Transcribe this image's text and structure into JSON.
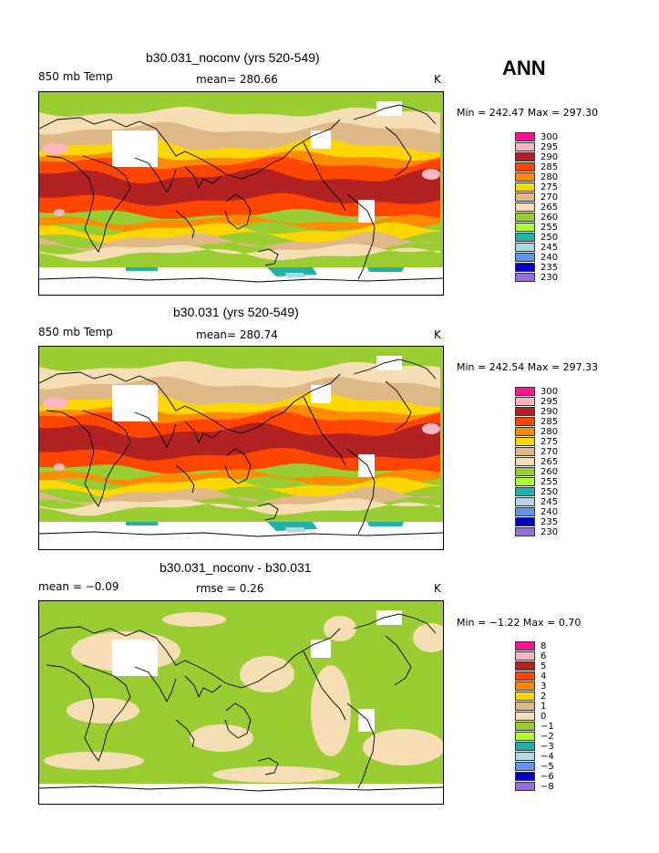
{
  "season": "ANN",
  "panels": [
    {
      "title": "b30.031_noconv (yrs 520-549)",
      "left_label": "850 mb Temp",
      "center_label": "mean= 280.66",
      "units": "K",
      "minmax": "Min = 242.47  Max = 297.30",
      "scheme": "abs"
    },
    {
      "title": "b30.031 (yrs 520-549)",
      "left_label": "850 mb Temp",
      "center_label": "mean= 280.74",
      "units": "K",
      "minmax": "Min = 242.54  Max = 297.33",
      "scheme": "abs"
    },
    {
      "title": "b30.031_noconv - b30.031",
      "left_label": "mean =   −0.09",
      "center_label": "rmse =    0.26",
      "units": "K",
      "minmax": "Min =   −1.22  Max =    0.70",
      "scheme": "diff"
    }
  ],
  "legend_abs": {
    "colors": [
      "#ff1493",
      "#ffb6c1",
      "#b22222",
      "#ff4500",
      "#ff8c00",
      "#ffd700",
      "#deb887",
      "#f5deb3",
      "#9acd32",
      "#adff2f",
      "#20b2aa",
      "#add8e6",
      "#6495ed",
      "#0000cd",
      "#9370db"
    ],
    "labels": [
      "300",
      "295",
      "290",
      "285",
      "280",
      "275",
      "270",
      "265",
      "260",
      "255",
      "250",
      "245",
      "240",
      "235",
      "230"
    ]
  },
  "legend_diff": {
    "colors": [
      "#ff1493",
      "#ffb6c1",
      "#b22222",
      "#ff4500",
      "#ff8c00",
      "#ffd700",
      "#deb887",
      "#f5deb3",
      "#9acd32",
      "#adff2f",
      "#20b2aa",
      "#add8e6",
      "#6495ed",
      "#0000cd",
      "#9370db"
    ],
    "labels": [
      "8",
      "6",
      "5",
      "4",
      "3",
      "2",
      "1",
      "0",
      "−1",
      "−2",
      "−3",
      "−4",
      "−5",
      "−6",
      "−8"
    ]
  }
}
